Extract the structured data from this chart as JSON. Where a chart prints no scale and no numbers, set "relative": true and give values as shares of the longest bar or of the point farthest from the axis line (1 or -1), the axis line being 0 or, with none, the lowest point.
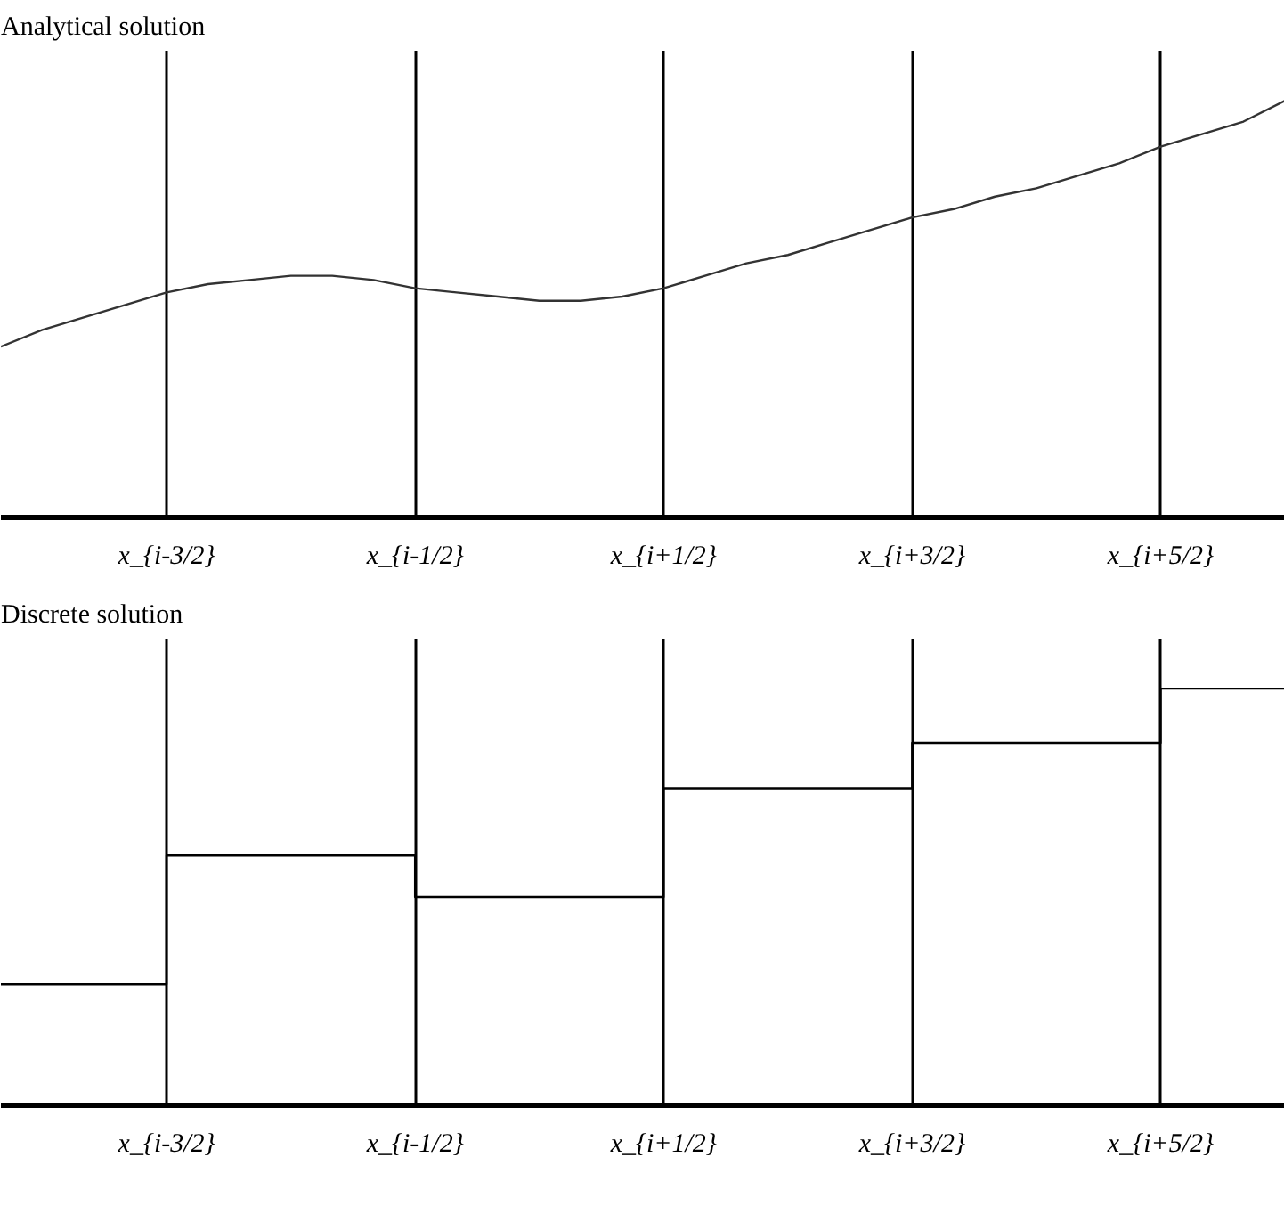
{
  "chart_data": [
    {
      "type": "line",
      "title": "Analytical solution",
      "relative": true,
      "grid": "x",
      "tick_labels": "x",
      "categories": [
        null,
        null,
        null,
        null,
        "x_{i-3/2}",
        null,
        null,
        null,
        null,
        null,
        "x_{i-1/2}",
        null,
        null,
        null,
        null,
        null,
        "x_{i+1/2}",
        null,
        null,
        null,
        null,
        null,
        "x_{i+3/2}",
        null,
        null,
        null,
        null,
        null,
        "x_{i+5/2}",
        null,
        null,
        null
      ],
      "series": [
        {
          "color": "#333333",
          "values": [
            0.41,
            0.45,
            0.48,
            0.51,
            0.54,
            0.56,
            0.57,
            0.58,
            0.58,
            0.57,
            0.55,
            0.54,
            0.53,
            0.52,
            0.52,
            0.53,
            0.55,
            0.58,
            0.61,
            0.63,
            0.66,
            0.69,
            0.72,
            0.74,
            0.77,
            0.79,
            0.82,
            0.85,
            0.89,
            0.92,
            0.95,
            1.0
          ]
        }
      ]
    },
    {
      "type": "step",
      "title": "Discrete solution",
      "relative": true,
      "grid": "x",
      "tick_labels": "x",
      "categories": [
        null,
        null,
        null,
        null,
        "x_{i-3/2}",
        null,
        null,
        null,
        null,
        null,
        "x_{i-1/2}",
        null,
        null,
        null,
        null,
        null,
        "x_{i+1/2}",
        null,
        null,
        null,
        null,
        null,
        "x_{i+3/2}",
        null,
        null,
        null,
        null,
        null,
        "x_{i+5/2}",
        null,
        null,
        null
      ],
      "series": [
        {
          "color": "#000000",
          "values": [
            0.29,
            0.29,
            0.29,
            0.29,
            0.6,
            0.6,
            0.6,
            0.6,
            0.6,
            0.6,
            0.5,
            0.5,
            0.5,
            0.5,
            0.5,
            0.5,
            0.76,
            0.76,
            0.76,
            0.76,
            0.76,
            0.76,
            0.87,
            0.87,
            0.87,
            0.87,
            0.87,
            0.87,
            1.0,
            1.0,
            1.0,
            1.0
          ]
        }
      ]
    }
  ]
}
